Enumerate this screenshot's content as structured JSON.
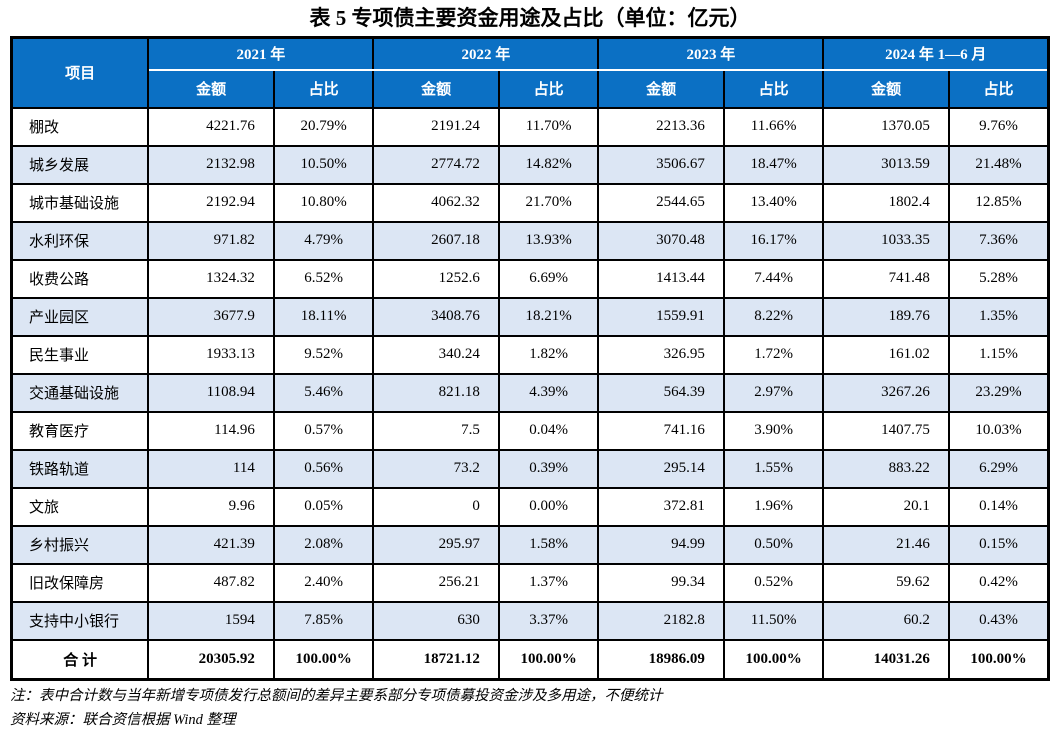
{
  "title": "表 5 专项债主要资金用途及占比（单位：亿元）",
  "table": {
    "item_header": "项目",
    "year_groups": [
      "2021 年",
      "2022 年",
      "2023 年",
      "2024 年 1—6 月"
    ],
    "sub_headers": {
      "amount": "金额",
      "share": "占比"
    },
    "rows": [
      {
        "item": "棚改",
        "values": [
          "4221.76",
          "20.79%",
          "2191.24",
          "11.70%",
          "2213.36",
          "11.66%",
          "1370.05",
          "9.76%"
        ]
      },
      {
        "item": "城乡发展",
        "values": [
          "2132.98",
          "10.50%",
          "2774.72",
          "14.82%",
          "3506.67",
          "18.47%",
          "3013.59",
          "21.48%"
        ]
      },
      {
        "item": "城市基础设施",
        "values": [
          "2192.94",
          "10.80%",
          "4062.32",
          "21.70%",
          "2544.65",
          "13.40%",
          "1802.4",
          "12.85%"
        ]
      },
      {
        "item": "水利环保",
        "values": [
          "971.82",
          "4.79%",
          "2607.18",
          "13.93%",
          "3070.48",
          "16.17%",
          "1033.35",
          "7.36%"
        ]
      },
      {
        "item": "收费公路",
        "values": [
          "1324.32",
          "6.52%",
          "1252.6",
          "6.69%",
          "1413.44",
          "7.44%",
          "741.48",
          "5.28%"
        ]
      },
      {
        "item": "产业园区",
        "values": [
          "3677.9",
          "18.11%",
          "3408.76",
          "18.21%",
          "1559.91",
          "8.22%",
          "189.76",
          "1.35%"
        ]
      },
      {
        "item": "民生事业",
        "values": [
          "1933.13",
          "9.52%",
          "340.24",
          "1.82%",
          "326.95",
          "1.72%",
          "161.02",
          "1.15%"
        ]
      },
      {
        "item": "交通基础设施",
        "values": [
          "1108.94",
          "5.46%",
          "821.18",
          "4.39%",
          "564.39",
          "2.97%",
          "3267.26",
          "23.29%"
        ]
      },
      {
        "item": "教育医疗",
        "values": [
          "114.96",
          "0.57%",
          "7.5",
          "0.04%",
          "741.16",
          "3.90%",
          "1407.75",
          "10.03%"
        ]
      },
      {
        "item": "铁路轨道",
        "values": [
          "114",
          "0.56%",
          "73.2",
          "0.39%",
          "295.14",
          "1.55%",
          "883.22",
          "6.29%"
        ]
      },
      {
        "item": "文旅",
        "values": [
          "9.96",
          "0.05%",
          "0",
          "0.00%",
          "372.81",
          "1.96%",
          "20.1",
          "0.14%"
        ]
      },
      {
        "item": "乡村振兴",
        "values": [
          "421.39",
          "2.08%",
          "295.97",
          "1.58%",
          "94.99",
          "0.50%",
          "21.46",
          "0.15%"
        ]
      },
      {
        "item": "旧改保障房",
        "values": [
          "487.82",
          "2.40%",
          "256.21",
          "1.37%",
          "99.34",
          "0.52%",
          "59.62",
          "0.42%"
        ]
      },
      {
        "item": "支持中小银行",
        "values": [
          "1594",
          "7.85%",
          "630",
          "3.37%",
          "2182.8",
          "11.50%",
          "60.2",
          "0.43%"
        ]
      }
    ],
    "total_row": {
      "item": "合 计",
      "values": [
        "20305.92",
        "100.00%",
        "18721.12",
        "100.00%",
        "18986.09",
        "100.00%",
        "14031.26",
        "100.00%"
      ]
    }
  },
  "notes": [
    "注：表中合计数与当年新增专项债发行总额间的差异主要系部分专项债募投资金涉及多用途，不便统计",
    "资料来源：联合资信根据 Wind 整理"
  ],
  "colors": {
    "header_bg": "#0B70C4",
    "header_text": "#FFFFFF",
    "stripe_bg": "#DCE6F4",
    "border": "#000000"
  }
}
